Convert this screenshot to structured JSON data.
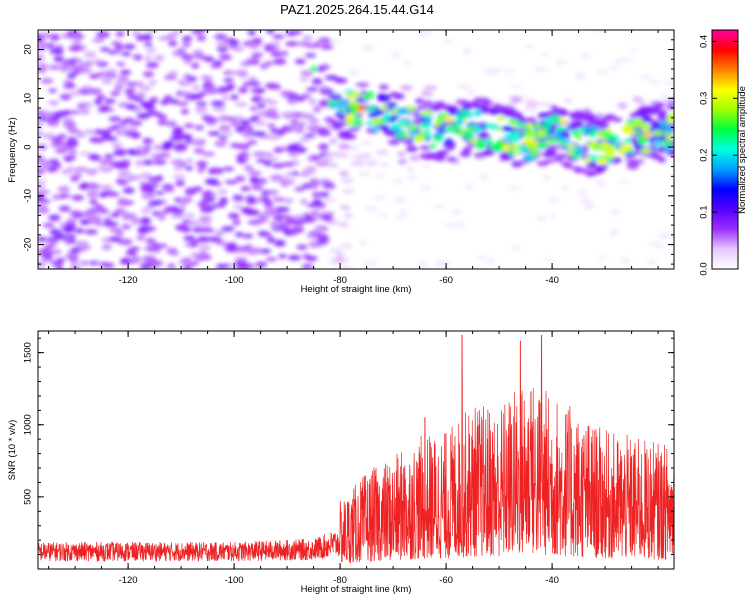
{
  "title": "PAZ1.2025.264.15.44.G14",
  "chart_data": [
    {
      "type": "heatmap",
      "xlabel": "Height of straight line (km)",
      "ylabel": "Frequency (Hz)",
      "xlim": [
        -137,
        -17
      ],
      "ylim": [
        -25,
        24
      ],
      "xticks": [
        -120,
        -100,
        -80,
        -60,
        -40
      ],
      "yticks": [
        -20,
        -10,
        0,
        10,
        20
      ],
      "colorbar": {
        "label": "Normalized spectral amplitude",
        "range": [
          0.0,
          0.42
        ],
        "ticks": [
          "0.0",
          "0.1",
          "0.2",
          "0.3",
          "0.4"
        ],
        "colormap": [
          "#ffffff",
          "#e6c8ff",
          "#9b30ff",
          "#5500ff",
          "#0000ff",
          "#00a0ff",
          "#00ffe0",
          "#00ff40",
          "#a0ff00",
          "#ffff00",
          "#ff8000",
          "#ff0000",
          "#ff00a0"
        ]
      },
      "signal_track": [
        {
          "x": -85,
          "y": 16
        },
        {
          "x": -80,
          "y": 8
        },
        {
          "x": -75,
          "y": 8
        },
        {
          "x": -70,
          "y": 6
        },
        {
          "x": -65,
          "y": 4
        },
        {
          "x": -60,
          "y": 3
        },
        {
          "x": -55,
          "y": 4
        },
        {
          "x": -50,
          "y": 3
        },
        {
          "x": -45,
          "y": 1
        },
        {
          "x": -40,
          "y": 3
        },
        {
          "x": -35,
          "y": 1
        },
        {
          "x": -30,
          "y": 0
        },
        {
          "x": -25,
          "y": 2
        },
        {
          "x": -20,
          "y": 3
        }
      ]
    },
    {
      "type": "line",
      "xlabel": "Height of straight line (km)",
      "ylabel": "SNR (10 * v/v)",
      "xlim": [
        -137,
        -17
      ],
      "ylim": [
        0,
        1650
      ],
      "xticks": [
        -120,
        -100,
        -80,
        -60,
        -40
      ],
      "yticks": [
        500,
        1000,
        1500
      ],
      "color": "#ee2222",
      "envelope": [
        {
          "x": -137,
          "y": 150
        },
        {
          "x": -120,
          "y": 150
        },
        {
          "x": -100,
          "y": 150
        },
        {
          "x": -85,
          "y": 170
        },
        {
          "x": -80,
          "y": 230
        },
        {
          "x": -75,
          "y": 330
        },
        {
          "x": -70,
          "y": 380
        },
        {
          "x": -65,
          "y": 450
        },
        {
          "x": -60,
          "y": 470
        },
        {
          "x": -55,
          "y": 560
        },
        {
          "x": -50,
          "y": 560
        },
        {
          "x": -45,
          "y": 650
        },
        {
          "x": -40,
          "y": 600
        },
        {
          "x": -35,
          "y": 530
        },
        {
          "x": -30,
          "y": 470
        },
        {
          "x": -25,
          "y": 450
        },
        {
          "x": -17,
          "y": 420
        }
      ],
      "peaks": [
        {
          "x": -57,
          "y": 1620
        },
        {
          "x": -46,
          "y": 1580
        },
        {
          "x": -44,
          "y": 1230
        },
        {
          "x": -42,
          "y": 1620
        },
        {
          "x": -64,
          "y": 1050
        },
        {
          "x": -68,
          "y": 700
        }
      ]
    }
  ]
}
